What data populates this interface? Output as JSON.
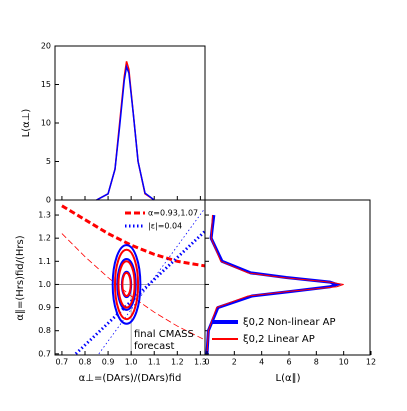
{
  "chart_data": [
    {
      "type": "line",
      "ylabel": "L(α⊥)",
      "xlim": [
        0.67,
        1.32
      ],
      "ylim": [
        0,
        20
      ],
      "yticks": [
        0,
        5,
        10,
        15,
        20
      ],
      "series": [
        {
          "color": "#ff0000",
          "x": [
            0.85,
            0.9,
            0.93,
            0.95,
            0.97,
            0.98,
            0.99,
            1.01,
            1.03,
            1.06,
            1.1
          ],
          "values": [
            0,
            0.8,
            4,
            10,
            16,
            18,
            17,
            11,
            5,
            0.8,
            0
          ]
        },
        {
          "color": "#0000ff",
          "x": [
            0.85,
            0.9,
            0.93,
            0.95,
            0.97,
            0.98,
            0.99,
            1.01,
            1.03,
            1.06,
            1.1
          ],
          "values": [
            0,
            0.8,
            4,
            9.5,
            15.5,
            17.3,
            16.5,
            11,
            5,
            0.9,
            0
          ]
        }
      ]
    },
    {
      "type": "contour",
      "xlabel": "α⊥=(DArs)/(DArs)fid",
      "ylabel": "α∥=(Hrs)fid/(Hrs)",
      "xlim": [
        0.67,
        1.32
      ],
      "ylim": [
        0.695,
        1.365
      ],
      "xticks": [
        0.7,
        0.8,
        0.9,
        {
          "value": 1,
          "label": "1.0"
        },
        1.1,
        1.2,
        1.3
      ],
      "yticks": [
        0.7,
        0.8,
        0.9,
        {
          "value": 1,
          "label": "1.0"
        },
        1.1,
        1.2,
        1.3
      ],
      "reference": {
        "x": 1,
        "y": 1
      },
      "series": [
        {
          "name": "α=0.93,1.07",
          "color": "#ff0000",
          "style": "dashed",
          "lines": [
            {
              "x": [
                0.7,
                0.8,
                0.9,
                1.0,
                1.1,
                1.2,
                1.32
              ],
              "values": [
                1.34,
                1.28,
                1.22,
                1.17,
                1.13,
                1.1,
                1.08
              ],
              "linewidth": 3
            },
            {
              "x": [
                0.7,
                0.8,
                0.9,
                1.0,
                1.1,
                1.2,
                1.32
              ],
              "values": [
                1.22,
                1.12,
                1.03,
                0.95,
                0.88,
                0.82,
                0.76
              ],
              "linewidth": 0.8
            }
          ]
        },
        {
          "name": "|ε|=0.04",
          "color": "#0000ff",
          "style": "dotted",
          "lines": [
            {
              "x": [
                0.76,
                1.32
              ],
              "values": [
                0.7,
                1.23
              ],
              "linewidth": 3
            },
            {
              "x": [
                0.86,
                1.32
              ],
              "values": [
                0.7,
                1.33
              ],
              "linewidth": 0.8
            }
          ]
        }
      ],
      "contours": [
        {
          "color": "#0000ff",
          "center": [
            0.98,
            1.0
          ],
          "radii": [
            0.06,
            0.17
          ]
        },
        {
          "color": "#0000ff",
          "center": [
            0.98,
            1.0
          ],
          "radii": [
            0.04,
            0.11
          ]
        },
        {
          "color": "#0000ff",
          "center": [
            0.98,
            1.0
          ],
          "radii": [
            0.02,
            0.055
          ]
        },
        {
          "color": "#ff0000",
          "center": [
            0.98,
            1.0
          ],
          "radii": [
            0.05,
            0.15
          ]
        },
        {
          "color": "#ff0000",
          "center": [
            0.98,
            1.0
          ],
          "radii": [
            0.035,
            0.1
          ]
        },
        {
          "color": "#ff0000",
          "center": [
            0.98,
            1.0
          ],
          "radii": [
            0.018,
            0.05
          ]
        }
      ],
      "annotation": [
        "final CMASS",
        "forecast"
      ]
    },
    {
      "type": "line",
      "orientation": "horizontal",
      "xlabel": "L(α∥)",
      "xlim": [
        0,
        12
      ],
      "xticks": [
        0,
        2,
        4,
        6,
        8,
        10,
        12
      ],
      "ylim": [
        0.695,
        1.365
      ],
      "series": [
        {
          "name": "ξ0,2 Non-linear AP",
          "color": "#0000ff",
          "linewidth": 3,
          "y": [
            1.3,
            1.2,
            1.1,
            1.05,
            1.03,
            1.01,
            1.0,
            0.99,
            0.97,
            0.95,
            0.9,
            0.8,
            0.7
          ],
          "values": [
            0.5,
            0.3,
            1.1,
            3.2,
            5.8,
            9,
            9.5,
            9,
            6.2,
            3.3,
            0.8,
            0.1,
            0
          ]
        },
        {
          "name": "ξ0,2 Linear AP",
          "color": "#ff0000",
          "linewidth": 1,
          "y": [
            1.3,
            1.2,
            1.1,
            1.05,
            1.03,
            1.01,
            1.0,
            0.99,
            0.97,
            0.95,
            0.9,
            0.8,
            0.7
          ],
          "values": [
            0.4,
            0.3,
            1,
            3,
            5.5,
            9,
            10,
            9.5,
            6,
            3,
            0.7,
            0.1,
            0
          ]
        }
      ]
    }
  ]
}
